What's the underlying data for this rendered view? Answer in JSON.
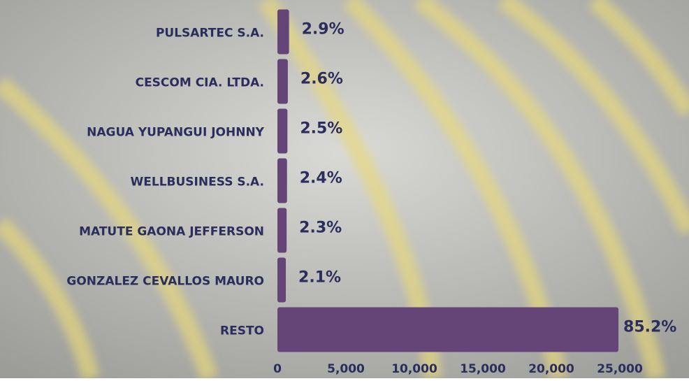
{
  "chart_data": {
    "type": "bar",
    "orientation": "horizontal",
    "categories": [
      "PULSARTEC S.A.",
      "CESCOM CIA. LTDA.",
      "NAGUA YUPANGUI JOHNNY",
      "WELLBUSINESS S.A.",
      "MATUTE GAONA JEFFERSON",
      "GONZALEZ CEVALLOS MAURO",
      "RESTO"
    ],
    "values": [
      848,
      760,
      731,
      701,
      672,
      614,
      24900
    ],
    "value_labels": [
      "2.9%",
      "2.6%",
      "2.5%",
      "2.4%",
      "2.3%",
      "2.1%",
      "85.2%"
    ],
    "color": "#654577",
    "xlim": [
      0,
      25000
    ],
    "xticks": [
      0,
      {
        "value": 5000,
        "label": "5,000"
      },
      {
        "value": 10000,
        "label": "10,000"
      },
      {
        "value": 15000,
        "label": "15,000"
      },
      {
        "value": 20000,
        "label": "20,000"
      },
      {
        "value": 25000,
        "label": "25,000"
      }
    ]
  }
}
